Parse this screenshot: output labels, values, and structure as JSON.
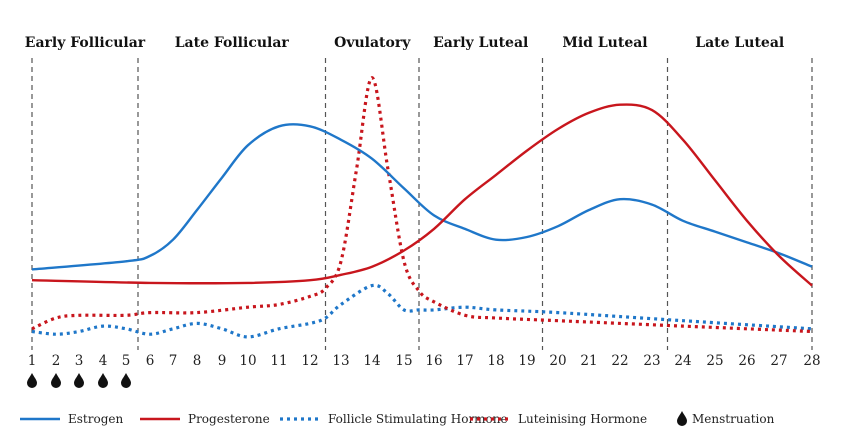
{
  "chart_data": {
    "type": "line",
    "title": "",
    "xlabel": "",
    "ylabel": "",
    "x_ticks": [
      "1",
      "2",
      "3",
      "4",
      "5",
      "6",
      "7",
      "8",
      "9",
      "10",
      "11",
      "12",
      "13",
      "14",
      "15",
      "16",
      "17",
      "18",
      "19",
      "20",
      "21",
      "22",
      "23",
      "24",
      "25",
      "26",
      "27",
      "28"
    ],
    "phases": [
      {
        "label": "Early Follicular",
        "start": 1,
        "end": 5.5
      },
      {
        "label": "Late Follicular",
        "start": 5.5,
        "end": 12.5
      },
      {
        "label": "Ovulatory",
        "start": 12.5,
        "end": 15.5
      },
      {
        "label": "Early Luteal",
        "start": 15.5,
        "end": 19.5
      },
      {
        "label": "Mid Luteal",
        "start": 19.5,
        "end": 23.5
      },
      {
        "label": "Late Luteal",
        "start": 23.5,
        "end": 28
      }
    ],
    "y_units": "relative level (0-100), no axis shown",
    "grid": false,
    "legend_position": "bottom",
    "series": [
      {
        "name": "Estrogen",
        "color": "#1f77c9",
        "style": "solid",
        "points": [
          [
            1,
            28
          ],
          [
            5,
            31
          ],
          [
            6,
            33
          ],
          [
            7,
            39
          ],
          [
            8,
            50
          ],
          [
            9,
            62
          ],
          [
            10,
            74
          ],
          [
            11,
            81
          ],
          [
            12,
            81
          ],
          [
            13,
            76
          ],
          [
            14,
            69
          ],
          [
            15,
            58
          ],
          [
            16,
            48
          ],
          [
            17,
            43
          ],
          [
            18,
            39
          ],
          [
            19,
            40
          ],
          [
            20,
            44
          ],
          [
            21,
            50
          ],
          [
            22,
            54
          ],
          [
            23,
            52
          ],
          [
            24,
            46
          ],
          [
            25,
            42
          ],
          [
            26,
            38
          ],
          [
            27,
            34
          ],
          [
            28,
            29
          ]
        ]
      },
      {
        "name": "Progesterone",
        "color": "#c8161d",
        "style": "solid",
        "points": [
          [
            1,
            24
          ],
          [
            6,
            23
          ],
          [
            10,
            23
          ],
          [
            12,
            24
          ],
          [
            13,
            26
          ],
          [
            14,
            29
          ],
          [
            15,
            35
          ],
          [
            16,
            43
          ],
          [
            17,
            54
          ],
          [
            18,
            63
          ],
          [
            19,
            72
          ],
          [
            20,
            80
          ],
          [
            21,
            86
          ],
          [
            22,
            89
          ],
          [
            23,
            87
          ],
          [
            24,
            76
          ],
          [
            25,
            61
          ],
          [
            26,
            46
          ],
          [
            27,
            33
          ],
          [
            28,
            22
          ]
        ]
      },
      {
        "name": "Follicle Stimulating Hormone",
        "color": "#1f77c9",
        "style": "dotted",
        "points": [
          [
            1,
            5
          ],
          [
            2,
            4
          ],
          [
            3,
            5
          ],
          [
            4,
            7
          ],
          [
            5,
            6
          ],
          [
            6,
            4
          ],
          [
            7,
            6
          ],
          [
            8,
            8
          ],
          [
            9,
            6
          ],
          [
            10,
            3
          ],
          [
            11,
            6
          ],
          [
            12,
            8
          ],
          [
            12.5,
            10
          ],
          [
            13,
            15
          ],
          [
            14,
            22
          ],
          [
            14.5,
            19
          ],
          [
            15,
            13
          ],
          [
            15.5,
            13
          ],
          [
            16,
            13
          ],
          [
            17,
            14
          ],
          [
            18,
            13
          ],
          [
            20,
            12
          ],
          [
            24,
            9
          ],
          [
            28,
            6
          ]
        ]
      },
      {
        "name": "Luteinising Hormone",
        "color": "#c8161d",
        "style": "dotted",
        "points": [
          [
            1,
            6
          ],
          [
            2,
            10
          ],
          [
            3,
            11
          ],
          [
            5,
            11
          ],
          [
            6,
            12
          ],
          [
            8,
            12
          ],
          [
            10,
            14
          ],
          [
            11,
            15
          ],
          [
            12,
            18
          ],
          [
            12.5,
            21
          ],
          [
            13,
            31
          ],
          [
            13.5,
            65
          ],
          [
            14,
            99
          ],
          [
            14.5,
            65
          ],
          [
            15,
            31
          ],
          [
            15.5,
            20
          ],
          [
            16,
            16
          ],
          [
            17,
            11
          ],
          [
            18,
            10
          ],
          [
            20,
            9
          ],
          [
            24,
            7
          ],
          [
            28,
            5
          ]
        ]
      }
    ],
    "markers": {
      "name": "Menstruation",
      "days": [
        1,
        2,
        3,
        4,
        5
      ],
      "icon": "drop-icon"
    }
  },
  "legend": [
    {
      "label": "Estrogen",
      "color": "#1f77c9",
      "style": "solid"
    },
    {
      "label": "Progesterone",
      "color": "#c8161d",
      "style": "solid"
    },
    {
      "label": "Follicle Stimulating Hormone",
      "color": "#1f77c9",
      "style": "dotted"
    },
    {
      "label": "Luteinising Hormone",
      "color": "#c8161d",
      "style": "dotted"
    },
    {
      "label": "Menstruation",
      "icon": "drop-icon"
    }
  ]
}
